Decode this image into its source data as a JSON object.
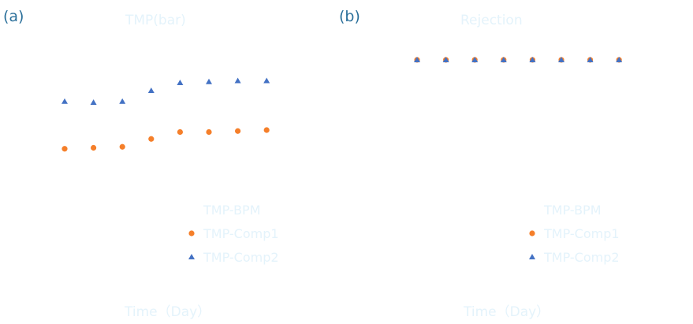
{
  "chart_data": [
    {
      "type": "scatter",
      "panel_label": "(a)",
      "title": "TMP(bar)",
      "xlabel": "Time（Day）",
      "ylabel": "",
      "x": [
        1,
        2,
        3,
        4,
        5,
        6,
        7,
        8
      ],
      "xlim": [
        0.2,
        9
      ],
      "ylim": [
        0,
        2
      ],
      "grid": false,
      "legend_position": "bottom-right",
      "series": [
        {
          "name": "TMP-BPM",
          "values": [],
          "marker": "none",
          "color": ""
        },
        {
          "name": "TMP-Comp1",
          "values": [
            0.49,
            0.5,
            0.51,
            0.59,
            0.66,
            0.66,
            0.67,
            0.68
          ],
          "marker": "circle",
          "color": "#f57f2a"
        },
        {
          "name": "TMP-Comp2",
          "values": [
            0.97,
            0.96,
            0.97,
            1.08,
            1.16,
            1.17,
            1.18,
            1.18
          ],
          "marker": "triangle",
          "color": "#4472c4"
        }
      ]
    },
    {
      "type": "scatter",
      "panel_label": "(b)",
      "title": "Rejection",
      "xlabel": "Time（Day）",
      "ylabel": "",
      "x": [
        1,
        2,
        3,
        4,
        5,
        6,
        7,
        8
      ],
      "xlim": [
        0.2,
        9
      ],
      "ylim": [
        0,
        100
      ],
      "grid": false,
      "legend_position": "bottom-right",
      "series": [
        {
          "name": "TMP-BPM",
          "values": [],
          "marker": "none",
          "color": ""
        },
        {
          "name": "TMP-Comp1",
          "values": [
            99,
            99,
            99,
            99,
            99,
            99,
            99,
            99
          ],
          "marker": "circle",
          "color": "#f57f2a"
        },
        {
          "name": "TMP-Comp2",
          "values": [
            99,
            99,
            99,
            99,
            99,
            99,
            99,
            99
          ],
          "marker": "triangle",
          "color": "#4472c4"
        }
      ]
    }
  ]
}
